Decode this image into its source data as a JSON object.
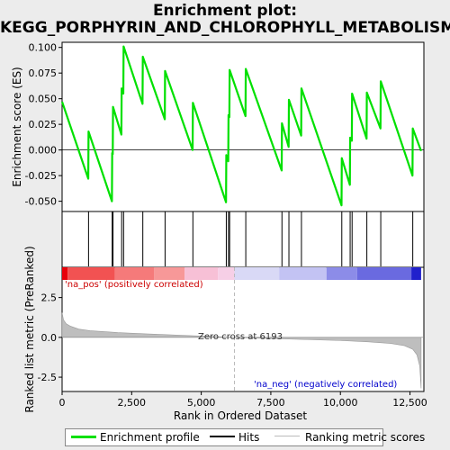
{
  "title_line1": "Enrichment plot:",
  "title_line2": "KEGG_PORPHYRIN_AND_CHLOROPHYLL_METABOLISM",
  "chart_data": {
    "type": "line",
    "x_label": "Rank in Ordered Dataset",
    "es_ylabel": "Enrichment score (ES)",
    "metric_ylabel": "Ranked list metric (PreRanked)",
    "xlim": [
      0,
      13000
    ],
    "x_ticks": [
      0,
      2500,
      5000,
      7500,
      10000,
      12500
    ],
    "x_tick_labels": [
      "0",
      "2,500",
      "5,000",
      "7,500",
      "10,000",
      "12,500"
    ],
    "es_ylim": [
      -0.06,
      0.105
    ],
    "es_ticks": [
      -0.05,
      -0.025,
      0.0,
      0.025,
      0.05,
      0.075,
      0.1
    ],
    "es_tick_labels": [
      "-0.050",
      "-0.025",
      "0.000",
      "0.025",
      "0.050",
      "0.075",
      "0.100"
    ],
    "metric_ylim": [
      -3.4,
      4.4
    ],
    "metric_ticks": [
      -2.5,
      0.0,
      2.5
    ],
    "metric_tick_labels": [
      "-2.5",
      "0.0",
      "2.5"
    ],
    "zero_cross_label": "Zero cross at 6193",
    "zero_cross": 6193,
    "pos_label": "'na_pos' (positively correlated)",
    "neg_label": "'na_neg' (negatively correlated)",
    "n_genes": 12900,
    "hits": [
      0,
      950,
      1800,
      1830,
      2140,
      2210,
      2900,
      3700,
      4700,
      5900,
      5980,
      6020,
      6600,
      7900,
      8150,
      8600,
      10050,
      10350,
      10420,
      10950,
      11450,
      12600
    ],
    "es_profile": [
      [
        0,
        0.047
      ],
      [
        940,
        -0.028
      ],
      [
        950,
        0.018
      ],
      [
        1790,
        -0.05
      ],
      [
        1800,
        -0.003
      ],
      [
        1820,
        -0.004
      ],
      [
        1830,
        0.042
      ],
      [
        2130,
        0.015
      ],
      [
        2140,
        0.06
      ],
      [
        2200,
        0.055
      ],
      [
        2210,
        0.101
      ],
      [
        2890,
        0.045
      ],
      [
        2900,
        0.091
      ],
      [
        3690,
        0.03
      ],
      [
        3700,
        0.077
      ],
      [
        4690,
        0.0
      ],
      [
        4700,
        0.046
      ],
      [
        5890,
        -0.051
      ],
      [
        5900,
        -0.005
      ],
      [
        5970,
        -0.011
      ],
      [
        5980,
        0.034
      ],
      [
        6010,
        0.032
      ],
      [
        6020,
        0.078
      ],
      [
        6590,
        0.033
      ],
      [
        6600,
        0.079
      ],
      [
        7890,
        -0.02
      ],
      [
        7900,
        0.026
      ],
      [
        8140,
        0.003
      ],
      [
        8150,
        0.049
      ],
      [
        8590,
        0.014
      ],
      [
        8600,
        0.06
      ],
      [
        10040,
        -0.054
      ],
      [
        10050,
        -0.008
      ],
      [
        10340,
        -0.034
      ],
      [
        10350,
        0.012
      ],
      [
        10410,
        0.009
      ],
      [
        10420,
        0.055
      ],
      [
        10940,
        0.011
      ],
      [
        10950,
        0.056
      ],
      [
        11440,
        0.021
      ],
      [
        11450,
        0.067
      ],
      [
        12590,
        -0.025
      ],
      [
        12600,
        0.021
      ],
      [
        12900,
        -0.001
      ]
    ],
    "metric_curve": [
      [
        0,
        1.55
      ],
      [
        50,
        1.1
      ],
      [
        150,
        0.85
      ],
      [
        300,
        0.7
      ],
      [
        600,
        0.52
      ],
      [
        1000,
        0.42
      ],
      [
        2000,
        0.3
      ],
      [
        3000,
        0.22
      ],
      [
        4000,
        0.15
      ],
      [
        5000,
        0.08
      ],
      [
        6193,
        0.0
      ],
      [
        7000,
        -0.05
      ],
      [
        8000,
        -0.1
      ],
      [
        9000,
        -0.15
      ],
      [
        10000,
        -0.2
      ],
      [
        11000,
        -0.28
      ],
      [
        11800,
        -0.38
      ],
      [
        12300,
        -0.52
      ],
      [
        12600,
        -0.75
      ],
      [
        12750,
        -1.1
      ],
      [
        12850,
        -1.8
      ],
      [
        12900,
        -3.2
      ]
    ],
    "heatmap_segments": [
      {
        "from": 0,
        "to": 200,
        "color": "#e8000a"
      },
      {
        "from": 200,
        "to": 1900,
        "color": "#f25252"
      },
      {
        "from": 1900,
        "to": 3300,
        "color": "#f57a7a"
      },
      {
        "from": 3300,
        "to": 4400,
        "color": "#f79898"
      },
      {
        "from": 4400,
        "to": 5600,
        "color": "#f7c0d6"
      },
      {
        "from": 5600,
        "to": 6193,
        "color": "#f6cfe6"
      },
      {
        "from": 6193,
        "to": 7800,
        "color": "#d9d9f6"
      },
      {
        "from": 7800,
        "to": 9500,
        "color": "#c3c3f3"
      },
      {
        "from": 9500,
        "to": 10600,
        "color": "#8c8ce8"
      },
      {
        "from": 10600,
        "to": 12550,
        "color": "#6a6ae0"
      },
      {
        "from": 12550,
        "to": 12900,
        "color": "#2020cc"
      }
    ],
    "colors": {
      "es_line": "#00e000",
      "hits": "#000000",
      "metric_fill": "#bebebe",
      "zero_line": "#bbbbbb"
    }
  },
  "legend": {
    "enrichment_profile": "Enrichment profile",
    "hits": "Hits",
    "ranking_metric_scores": "Ranking metric scores"
  }
}
